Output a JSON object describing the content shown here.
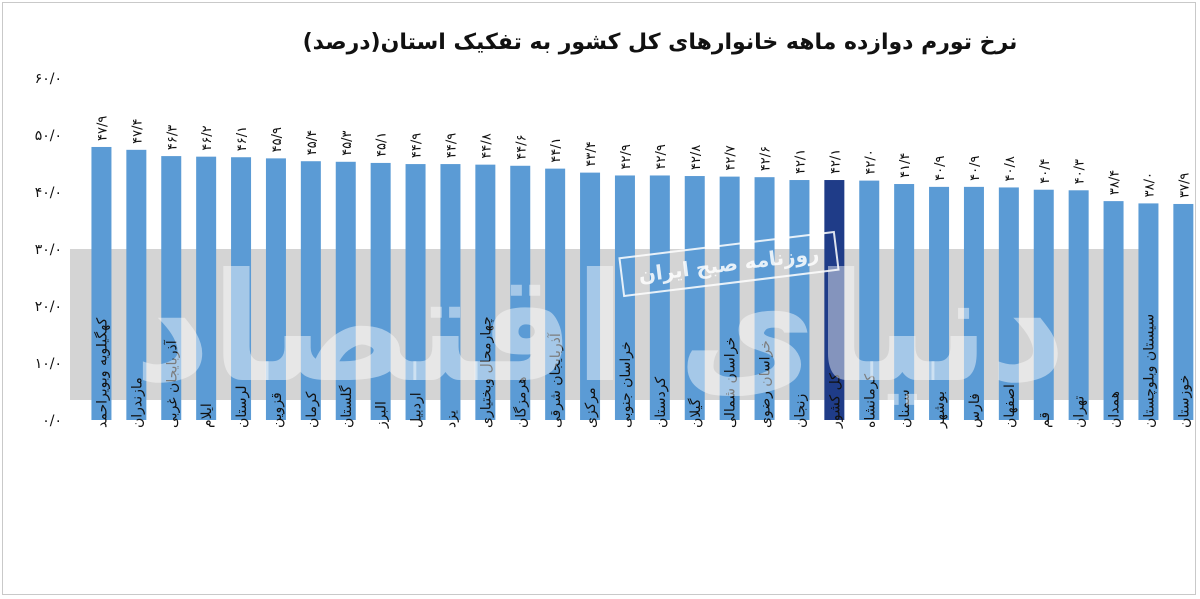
{
  "chart_data": {
    "type": "bar",
    "title": "نرخ تورم دوازده ماهه خانوارهای کل کشور به تفکیک استان(درصد)",
    "xlabel": "",
    "ylabel": "",
    "ylim": [
      0,
      60
    ],
    "yticks": [
      "۰/۰",
      "۱۰/۰",
      "۲۰/۰",
      "۳۰/۰",
      "۴۰/۰",
      "۵۰/۰",
      "۶۰/۰"
    ],
    "grid": false,
    "categories": [
      "کهگیلویه وبویراحمد",
      "مازندران",
      "آذربایجان غربی",
      "ایلام",
      "لرستان",
      "قزوین",
      "کرمان",
      "گلستان",
      "البرز",
      "اردبیل",
      "یزد",
      "چهارمحال وبختیاری",
      "هرمزگان",
      "آذربایجان شرقی",
      "مرکزی",
      "خراسان جنوبی",
      "کردستان",
      "گیلان",
      "خراسان شمالی",
      "خراسان رضوی",
      "زنجان",
      "کل کشور",
      "کرمانشاه",
      "سمنان",
      "بوشهر",
      "فارس",
      "اصفهان",
      "قم",
      "تهران",
      "همدان",
      "سیستان وبلوچستان",
      "خوزستان"
    ],
    "values": [
      47.9,
      47.4,
      46.3,
      46.2,
      46.1,
      45.9,
      45.4,
      45.3,
      45.1,
      44.9,
      44.9,
      44.8,
      44.6,
      44.1,
      43.4,
      42.9,
      42.9,
      42.8,
      42.7,
      42.6,
      42.1,
      42.1,
      42.0,
      41.4,
      40.9,
      40.9,
      40.8,
      40.4,
      40.3,
      38.4,
      38.0,
      37.9
    ],
    "value_labels": [
      "۴۷/۹",
      "۴۷/۴",
      "۴۶/۳",
      "۴۶/۲",
      "۴۶/۱",
      "۴۵/۹",
      "۴۵/۴",
      "۴۵/۳",
      "۴۵/۱",
      "۴۴/۹",
      "۴۴/۹",
      "۴۴/۸",
      "۴۴/۶",
      "۴۴/۱",
      "۴۳/۴",
      "۴۲/۹",
      "۴۲/۹",
      "۴۲/۸",
      "۴۲/۷",
      "۴۲/۶",
      "۴۲/۱",
      "۴۲/۱",
      "۴۲/۰",
      "۴۱/۴",
      "۴۰/۹",
      "۴۰/۹",
      "۴۰/۸",
      "۴۰/۴",
      "۴۰/۳",
      "۳۸/۴",
      "۳۸/۰",
      "۳۷/۹"
    ],
    "highlight_category": "کل کشور",
    "colors": {
      "bar": "#5b9bd5",
      "bar_highlight": "#1f3c88",
      "band": "#d4d4d4",
      "text": "#111111"
    }
  },
  "watermark": {
    "label": "روزنامه صبح ایران",
    "logo": "دنیای اقتصاد"
  }
}
